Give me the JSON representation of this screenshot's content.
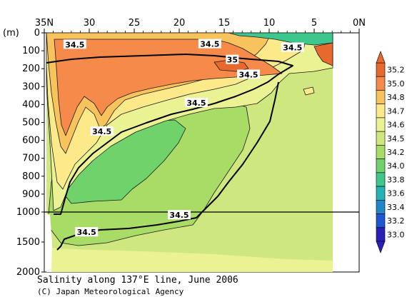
{
  "chart_data": {
    "type": "heatmap",
    "title": "Salinity along 137°E line, June 2006",
    "credit": "(C) Japan Meteorological Agency",
    "ylabel": "(m)",
    "x_ticks": [
      "35N",
      "30",
      "25",
      "20",
      "15",
      "10",
      "5",
      "0N"
    ],
    "x_tick_values": [
      35,
      30,
      25,
      20,
      15,
      10,
      5,
      0
    ],
    "xlim": [
      35,
      0
    ],
    "data_xlim": [
      32.5,
      3.3
    ],
    "y_ticks_upper": [
      "0",
      "100",
      "200",
      "300",
      "400",
      "500",
      "600",
      "700",
      "800",
      "900",
      "1000"
    ],
    "y_ticks_lower": [
      "1500",
      "2000"
    ],
    "ylim_upper": [
      0,
      1000
    ],
    "ylim_lower": [
      1000,
      2000
    ],
    "colorbar": {
      "labels": [
        "35.2",
        "35.0",
        "34.8",
        "34.7",
        "34.6",
        "34.5",
        "34.2",
        "34.0",
        "33.8",
        "33.6",
        "33.4",
        "33.2",
        "33.0"
      ],
      "colors": [
        "#e8692e",
        "#f58a4a",
        "#f8c25c",
        "#fbe98a",
        "#eaf294",
        "#cfe77f",
        "#a8dc66",
        "#6fd26a",
        "#3ec78d",
        "#25b3b3",
        "#1f86c9",
        "#1e57cf",
        "#2a1fb6"
      ]
    },
    "contour_labels": [
      {
        "text": "34.5",
        "lat": 31.6,
        "depth": 65
      },
      {
        "text": "34.5",
        "lat": 16.6,
        "depth": 62
      },
      {
        "text": "35",
        "lat": 14.1,
        "depth": 150
      },
      {
        "text": "34.5",
        "lat": 7.4,
        "depth": 82
      },
      {
        "text": "34.5",
        "lat": 12.3,
        "depth": 233
      },
      {
        "text": "34.5",
        "lat": 18.1,
        "depth": 390
      },
      {
        "text": "34.5",
        "lat": 28.6,
        "depth": 550
      },
      {
        "text": "34.5",
        "lat": 20.0,
        "depth": 1050
      },
      {
        "text": "34.5",
        "lat": 30.3,
        "depth": 1335
      }
    ]
  }
}
